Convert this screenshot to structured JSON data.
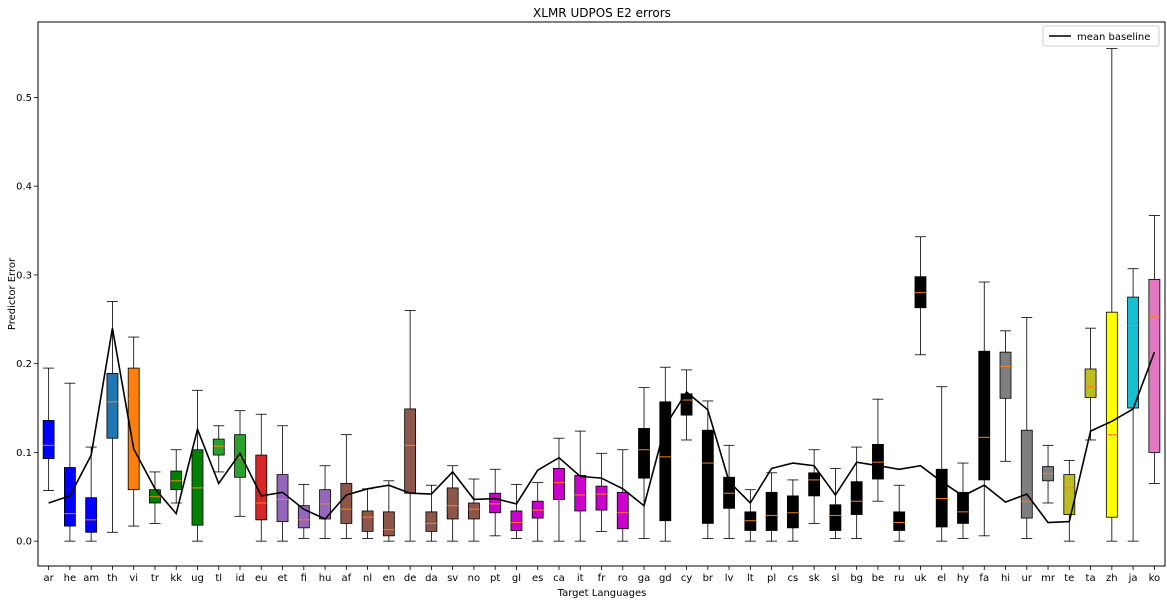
{
  "chart_data": {
    "type": "box",
    "title": "XLMR UDPOS E2 errors",
    "xlabel": "Target Languages",
    "ylabel": "Predictor Error",
    "ylim": [
      -0.028,
      0.585
    ],
    "yticks": [
      "0.0",
      "0.1",
      "0.2",
      "0.3",
      "0.4",
      "0.5"
    ],
    "grid": false,
    "legend": {
      "position": "top-right",
      "entries": [
        "mean baseline"
      ]
    },
    "categories": [
      "ar",
      "he",
      "am",
      "th",
      "vi",
      "tr",
      "kk",
      "ug",
      "tl",
      "id",
      "eu",
      "et",
      "fi",
      "hu",
      "af",
      "nl",
      "en",
      "de",
      "da",
      "sv",
      "no",
      "pt",
      "gl",
      "es",
      "ca",
      "it",
      "fr",
      "ro",
      "ga",
      "gd",
      "cy",
      "br",
      "lv",
      "lt",
      "pl",
      "cs",
      "sk",
      "sl",
      "bg",
      "be",
      "ru",
      "uk",
      "el",
      "hy",
      "fa",
      "hi",
      "ur",
      "mr",
      "te",
      "ta",
      "zh",
      "ja",
      "ko"
    ],
    "colors": [
      "#0000ff",
      "#0000ff",
      "#0000ff",
      "#1f77b4",
      "#ff7f0e",
      "#008000",
      "#008000",
      "#008000",
      "#2ca02c",
      "#2ca02c",
      "#d62728",
      "#9467bd",
      "#9467bd",
      "#9467bd",
      "#8c564b",
      "#8c564b",
      "#8c564b",
      "#8c564b",
      "#8c564b",
      "#8c564b",
      "#8c564b",
      "#cc00cc",
      "#cc00cc",
      "#cc00cc",
      "#cc00cc",
      "#cc00cc",
      "#cc00cc",
      "#cc00cc",
      "#000000",
      "#000000",
      "#000000",
      "#000000",
      "#000000",
      "#000000",
      "#000000",
      "#000000",
      "#000000",
      "#000000",
      "#000000",
      "#000000",
      "#000000",
      "#000000",
      "#000000",
      "#000000",
      "#000000",
      "#7f7f7f",
      "#7f7f7f",
      "#7f7f7f",
      "#bcbd22",
      "#bcbd22",
      "#ffff00",
      "#17becf",
      "#e377c2"
    ],
    "median_color": "#ff7f0e",
    "whisker_low": [
      0.057,
      0.0,
      0.0,
      0.01,
      0.017,
      0.02,
      0.043,
      0.0,
      0.078,
      0.028,
      0.0,
      0.0,
      0.003,
      0.003,
      0.003,
      0.003,
      0.0,
      0.0,
      0.0,
      0.0,
      0.0,
      0.006,
      0.003,
      0.0,
      0.0,
      0.0,
      0.011,
      0.0,
      0.003,
      0.0,
      0.114,
      0.003,
      0.003,
      0.0,
      0.0,
      0.0,
      0.02,
      0.003,
      0.003,
      0.045,
      0.0,
      0.21,
      0.0,
      0.003,
      0.006,
      0.09,
      0.003,
      0.043,
      0.0,
      0.114,
      0.0,
      0.0,
      0.065
    ],
    "q1": [
      0.093,
      0.017,
      0.01,
      0.116,
      0.058,
      0.043,
      0.058,
      0.018,
      0.097,
      0.072,
      0.024,
      0.022,
      0.015,
      0.025,
      0.02,
      0.011,
      0.006,
      0.054,
      0.011,
      0.025,
      0.025,
      0.032,
      0.012,
      0.026,
      0.047,
      0.034,
      0.035,
      0.014,
      0.071,
      0.023,
      0.142,
      0.02,
      0.037,
      0.012,
      0.012,
      0.015,
      0.051,
      0.012,
      0.03,
      0.07,
      0.012,
      0.263,
      0.016,
      0.02,
      0.069,
      0.161,
      0.026,
      0.068,
      0.03,
      0.162,
      0.027,
      0.15,
      0.1
    ],
    "median": [
      0.108,
      0.031,
      0.024,
      0.157,
      0.16,
      0.05,
      0.068,
      0.06,
      0.107,
      0.094,
      0.043,
      0.047,
      0.024,
      0.042,
      0.036,
      0.027,
      0.013,
      0.108,
      0.02,
      0.04,
      0.036,
      0.042,
      0.021,
      0.035,
      0.066,
      0.052,
      0.053,
      0.032,
      0.103,
      0.095,
      0.159,
      0.088,
      0.054,
      0.023,
      0.029,
      0.032,
      0.069,
      0.029,
      0.045,
      0.089,
      0.021,
      0.28,
      0.048,
      0.033,
      0.117,
      0.197,
      0.045,
      0.076,
      0.06,
      0.174,
      0.12,
      0.243,
      0.253
    ],
    "q3": [
      0.136,
      0.083,
      0.049,
      0.189,
      0.195,
      0.058,
      0.079,
      0.103,
      0.115,
      0.12,
      0.097,
      0.075,
      0.04,
      0.058,
      0.065,
      0.034,
      0.033,
      0.149,
      0.033,
      0.06,
      0.043,
      0.054,
      0.034,
      0.045,
      0.082,
      0.074,
      0.062,
      0.055,
      0.127,
      0.157,
      0.166,
      0.125,
      0.072,
      0.033,
      0.055,
      0.051,
      0.077,
      0.041,
      0.067,
      0.109,
      0.033,
      0.298,
      0.081,
      0.055,
      0.214,
      0.213,
      0.125,
      0.084,
      0.075,
      0.194,
      0.258,
      0.275,
      0.295
    ],
    "whisker_high": [
      0.195,
      0.178,
      0.106,
      0.27,
      0.23,
      0.078,
      0.103,
      0.17,
      0.13,
      0.147,
      0.143,
      0.13,
      0.064,
      0.085,
      0.12,
      0.059,
      0.068,
      0.26,
      0.063,
      0.085,
      0.07,
      0.081,
      0.064,
      0.066,
      0.116,
      0.124,
      0.099,
      0.103,
      0.173,
      0.196,
      0.193,
      0.158,
      0.108,
      0.058,
      0.077,
      0.069,
      0.103,
      0.082,
      0.106,
      0.16,
      0.063,
      0.343,
      0.174,
      0.088,
      0.292,
      0.237,
      0.252,
      0.108,
      0.091,
      0.24,
      0.555,
      0.307,
      0.367
    ],
    "series": [
      {
        "name": "mean baseline",
        "type": "line",
        "color": "#000000",
        "values": [
          0.043,
          0.051,
          0.097,
          0.24,
          0.104,
          0.059,
          0.031,
          0.126,
          0.065,
          0.099,
          0.051,
          0.055,
          0.036,
          0.025,
          0.052,
          0.059,
          0.063,
          0.054,
          0.053,
          0.078,
          0.047,
          0.048,
          0.042,
          0.08,
          0.094,
          0.073,
          0.071,
          0.059,
          0.04,
          0.13,
          0.168,
          0.148,
          0.067,
          0.043,
          0.082,
          0.088,
          0.085,
          0.052,
          0.089,
          0.085,
          0.081,
          0.085,
          0.067,
          0.051,
          0.063,
          0.044,
          0.053,
          0.021,
          0.022,
          0.124,
          0.135,
          0.149,
          0.213
        ]
      }
    ]
  }
}
